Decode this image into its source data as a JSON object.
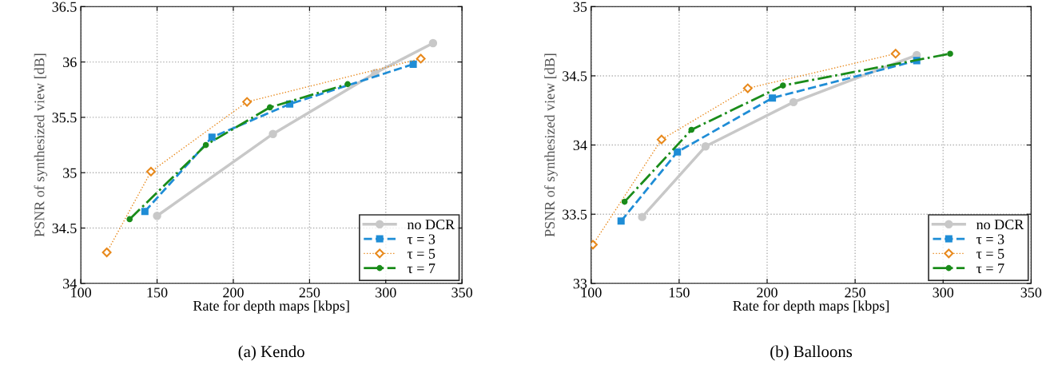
{
  "chart_data": [
    {
      "type": "line",
      "title": "(a) Kendo",
      "xlabel": "Rate for depth maps [kbps]",
      "ylabel": "PSNR of synthesized view [dB]",
      "xlim": [
        100,
        350
      ],
      "xticks": [
        100,
        150,
        200,
        250,
        300,
        350
      ],
      "ylim": [
        34,
        36.5
      ],
      "yticks": [
        34,
        34.5,
        35,
        35.5,
        36,
        36.5
      ],
      "grid": true,
      "legend": "bottom right",
      "series": [
        {
          "name": "no DCR",
          "color": "#c8c8c8",
          "marker": "circle",
          "line_style": "solid",
          "x": [
            150,
            226,
            293,
            331
          ],
          "values": [
            34.61,
            35.35,
            35.9,
            36.17
          ]
        },
        {
          "name": "τ = 3",
          "color": "#1f8dd6",
          "marker": "square",
          "line_style": "dashed",
          "x": [
            142,
            186,
            237,
            318
          ],
          "values": [
            34.65,
            35.32,
            35.62,
            35.98
          ]
        },
        {
          "name": "τ = 5",
          "color": "#e8891c",
          "marker": "diamond",
          "line_style": "dotted",
          "x": [
            117,
            146,
            209,
            323
          ],
          "values": [
            34.28,
            35.01,
            35.64,
            36.03
          ]
        },
        {
          "name": "τ = 7",
          "color": "#1a8c1a",
          "marker": "circle",
          "line_style": "dashed",
          "x": [
            132,
            182,
            224,
            275
          ],
          "values": [
            34.58,
            35.25,
            35.59,
            35.8
          ]
        }
      ]
    },
    {
      "type": "line",
      "title": "(b) Balloons",
      "xlabel": "Rate for depth maps [kbps]",
      "ylabel": "PSNR of synthesized view [dB]",
      "xlim": [
        100,
        350
      ],
      "xticks": [
        100,
        150,
        200,
        250,
        300,
        350
      ],
      "ylim": [
        33,
        35
      ],
      "yticks": [
        33,
        33.5,
        34,
        34.5,
        35
      ],
      "grid": true,
      "legend": "bottom right",
      "series": [
        {
          "name": "no DCR",
          "color": "#c8c8c8",
          "marker": "circle",
          "line_style": "solid",
          "x": [
            129,
            165,
            215,
            285
          ],
          "values": [
            33.48,
            33.99,
            34.31,
            34.65
          ]
        },
        {
          "name": "τ = 3",
          "color": "#1f8dd6",
          "marker": "square",
          "line_style": "dashed",
          "x": [
            117,
            149,
            203,
            285
          ],
          "values": [
            33.45,
            33.95,
            34.34,
            34.61
          ]
        },
        {
          "name": "τ = 5",
          "color": "#e8891c",
          "marker": "diamond",
          "line_style": "dotted",
          "x": [
            101,
            140,
            189,
            273
          ],
          "values": [
            33.28,
            34.04,
            34.41,
            34.66
          ]
        },
        {
          "name": "τ = 7",
          "color": "#1a8c1a",
          "marker": "circle",
          "line_style": "dashed",
          "x": [
            119,
            157,
            209,
            304
          ],
          "values": [
            33.59,
            34.11,
            34.43,
            34.66
          ]
        }
      ]
    }
  ]
}
